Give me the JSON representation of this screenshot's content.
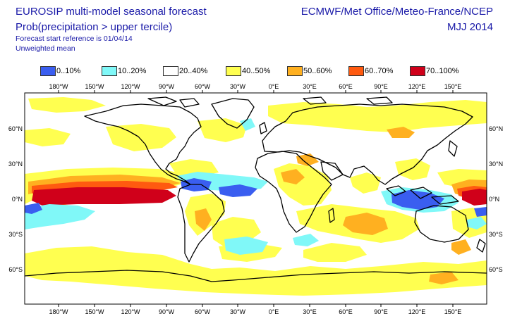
{
  "header": {
    "title_line1": "EUROSIP multi-model seasonal forecast",
    "title_line2": "Prob(precipitation > upper tercile)",
    "subtitle_line1": "Forecast start reference is 01/04/14",
    "subtitle_line2": "Unweighted mean",
    "centres": "ECMWF/Met Office/Meteo-France/NCEP",
    "season": "MJJ 2014"
  },
  "legend": [
    {
      "label": "0..10%",
      "color": "#3a5ef0"
    },
    {
      "label": "10..20%",
      "color": "#80f8f8"
    },
    {
      "label": "20..40%",
      "color": "#ffffff"
    },
    {
      "label": "40..50%",
      "color": "#ffff50"
    },
    {
      "label": "50..60%",
      "color": "#ffb020"
    },
    {
      "label": "60..70%",
      "color": "#ff5a10"
    },
    {
      "label": "70..100%",
      "color": "#d0001a"
    }
  ],
  "axes": {
    "lon_labels": [
      "180°W",
      "150°W",
      "120°W",
      "90°W",
      "60°W",
      "30°W",
      "0°E",
      "30°E",
      "60°E",
      "90°E",
      "120°E",
      "150°E"
    ],
    "lat_labels": [
      "60°N",
      "30°N",
      "0°N",
      "30°S",
      "60°S"
    ]
  }
}
